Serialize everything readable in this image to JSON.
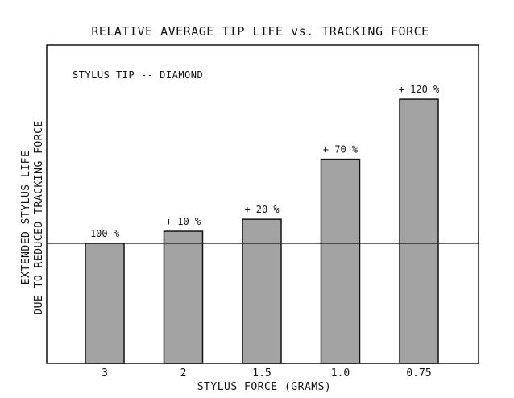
{
  "chart_data": {
    "type": "bar",
    "title": "RELATIVE AVERAGE TIP LIFE vs. TRACKING FORCE",
    "annotation": "STYLUS TIP -- DIAMOND",
    "xlabel": "STYLUS FORCE (GRAMS)",
    "ylabel_lines": [
      "EXTENDED STYLUS LIFE",
      "DUE TO REDUCED TRACKING FORCE"
    ],
    "categories": [
      "3",
      "2",
      "1.5",
      "1.0",
      "0.75"
    ],
    "values": [
      100,
      110,
      120,
      170,
      220
    ],
    "data_labels": [
      "100 %",
      "+ 10 %",
      "+ 20 %",
      "+ 70 %",
      "+ 120 %"
    ],
    "baseline": 100,
    "ylim": [
      0,
      265
    ],
    "bar_color": "#a3a3a3",
    "edge_color": "#111111"
  }
}
